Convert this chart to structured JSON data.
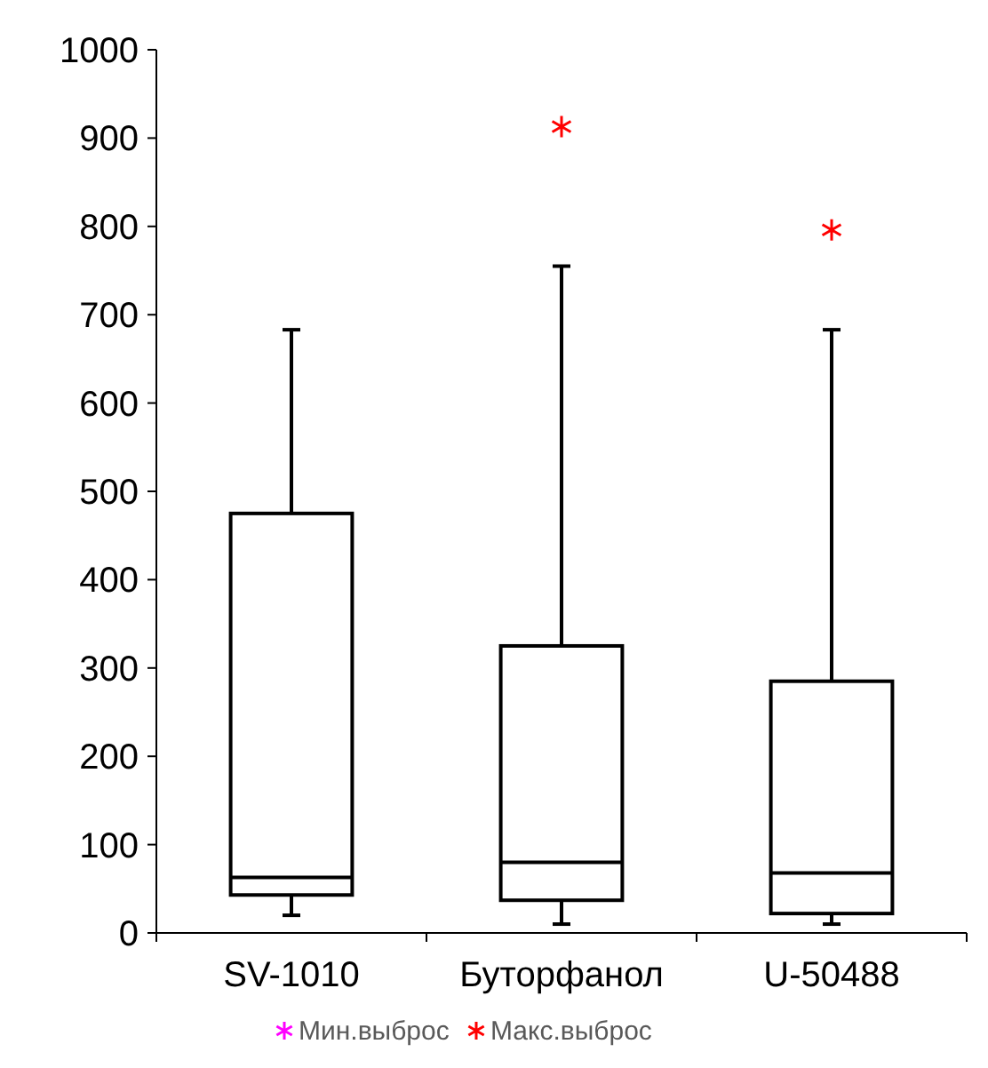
{
  "chart_data": {
    "type": "box",
    "categories": [
      "SV-1010",
      "Буторфанол",
      "U-50488"
    ],
    "boxes": [
      {
        "low": 20,
        "q1": 43,
        "median": 63,
        "q3": 475,
        "high": 683
      },
      {
        "low": 10,
        "q1": 37,
        "median": 80,
        "q3": 325,
        "high": 755
      },
      {
        "low": 10,
        "q1": 22,
        "median": 68,
        "q3": 285,
        "high": 683
      }
    ],
    "series": [
      {
        "name": "Мин.выброс",
        "type": "scatter",
        "color": "#ff00ff",
        "values": [
          null,
          null,
          null
        ]
      },
      {
        "name": "Макс.выброс",
        "type": "scatter",
        "color": "#ff0000",
        "x": [
          "Буторфанол",
          "U-50488"
        ],
        "values": [
          913,
          796
        ]
      }
    ],
    "ylim": [
      0,
      1000
    ],
    "yticks": [
      0,
      100,
      200,
      300,
      400,
      500,
      600,
      700,
      800,
      900,
      1000
    ],
    "marker": "cross",
    "legend": "bottom",
    "grid": false
  }
}
